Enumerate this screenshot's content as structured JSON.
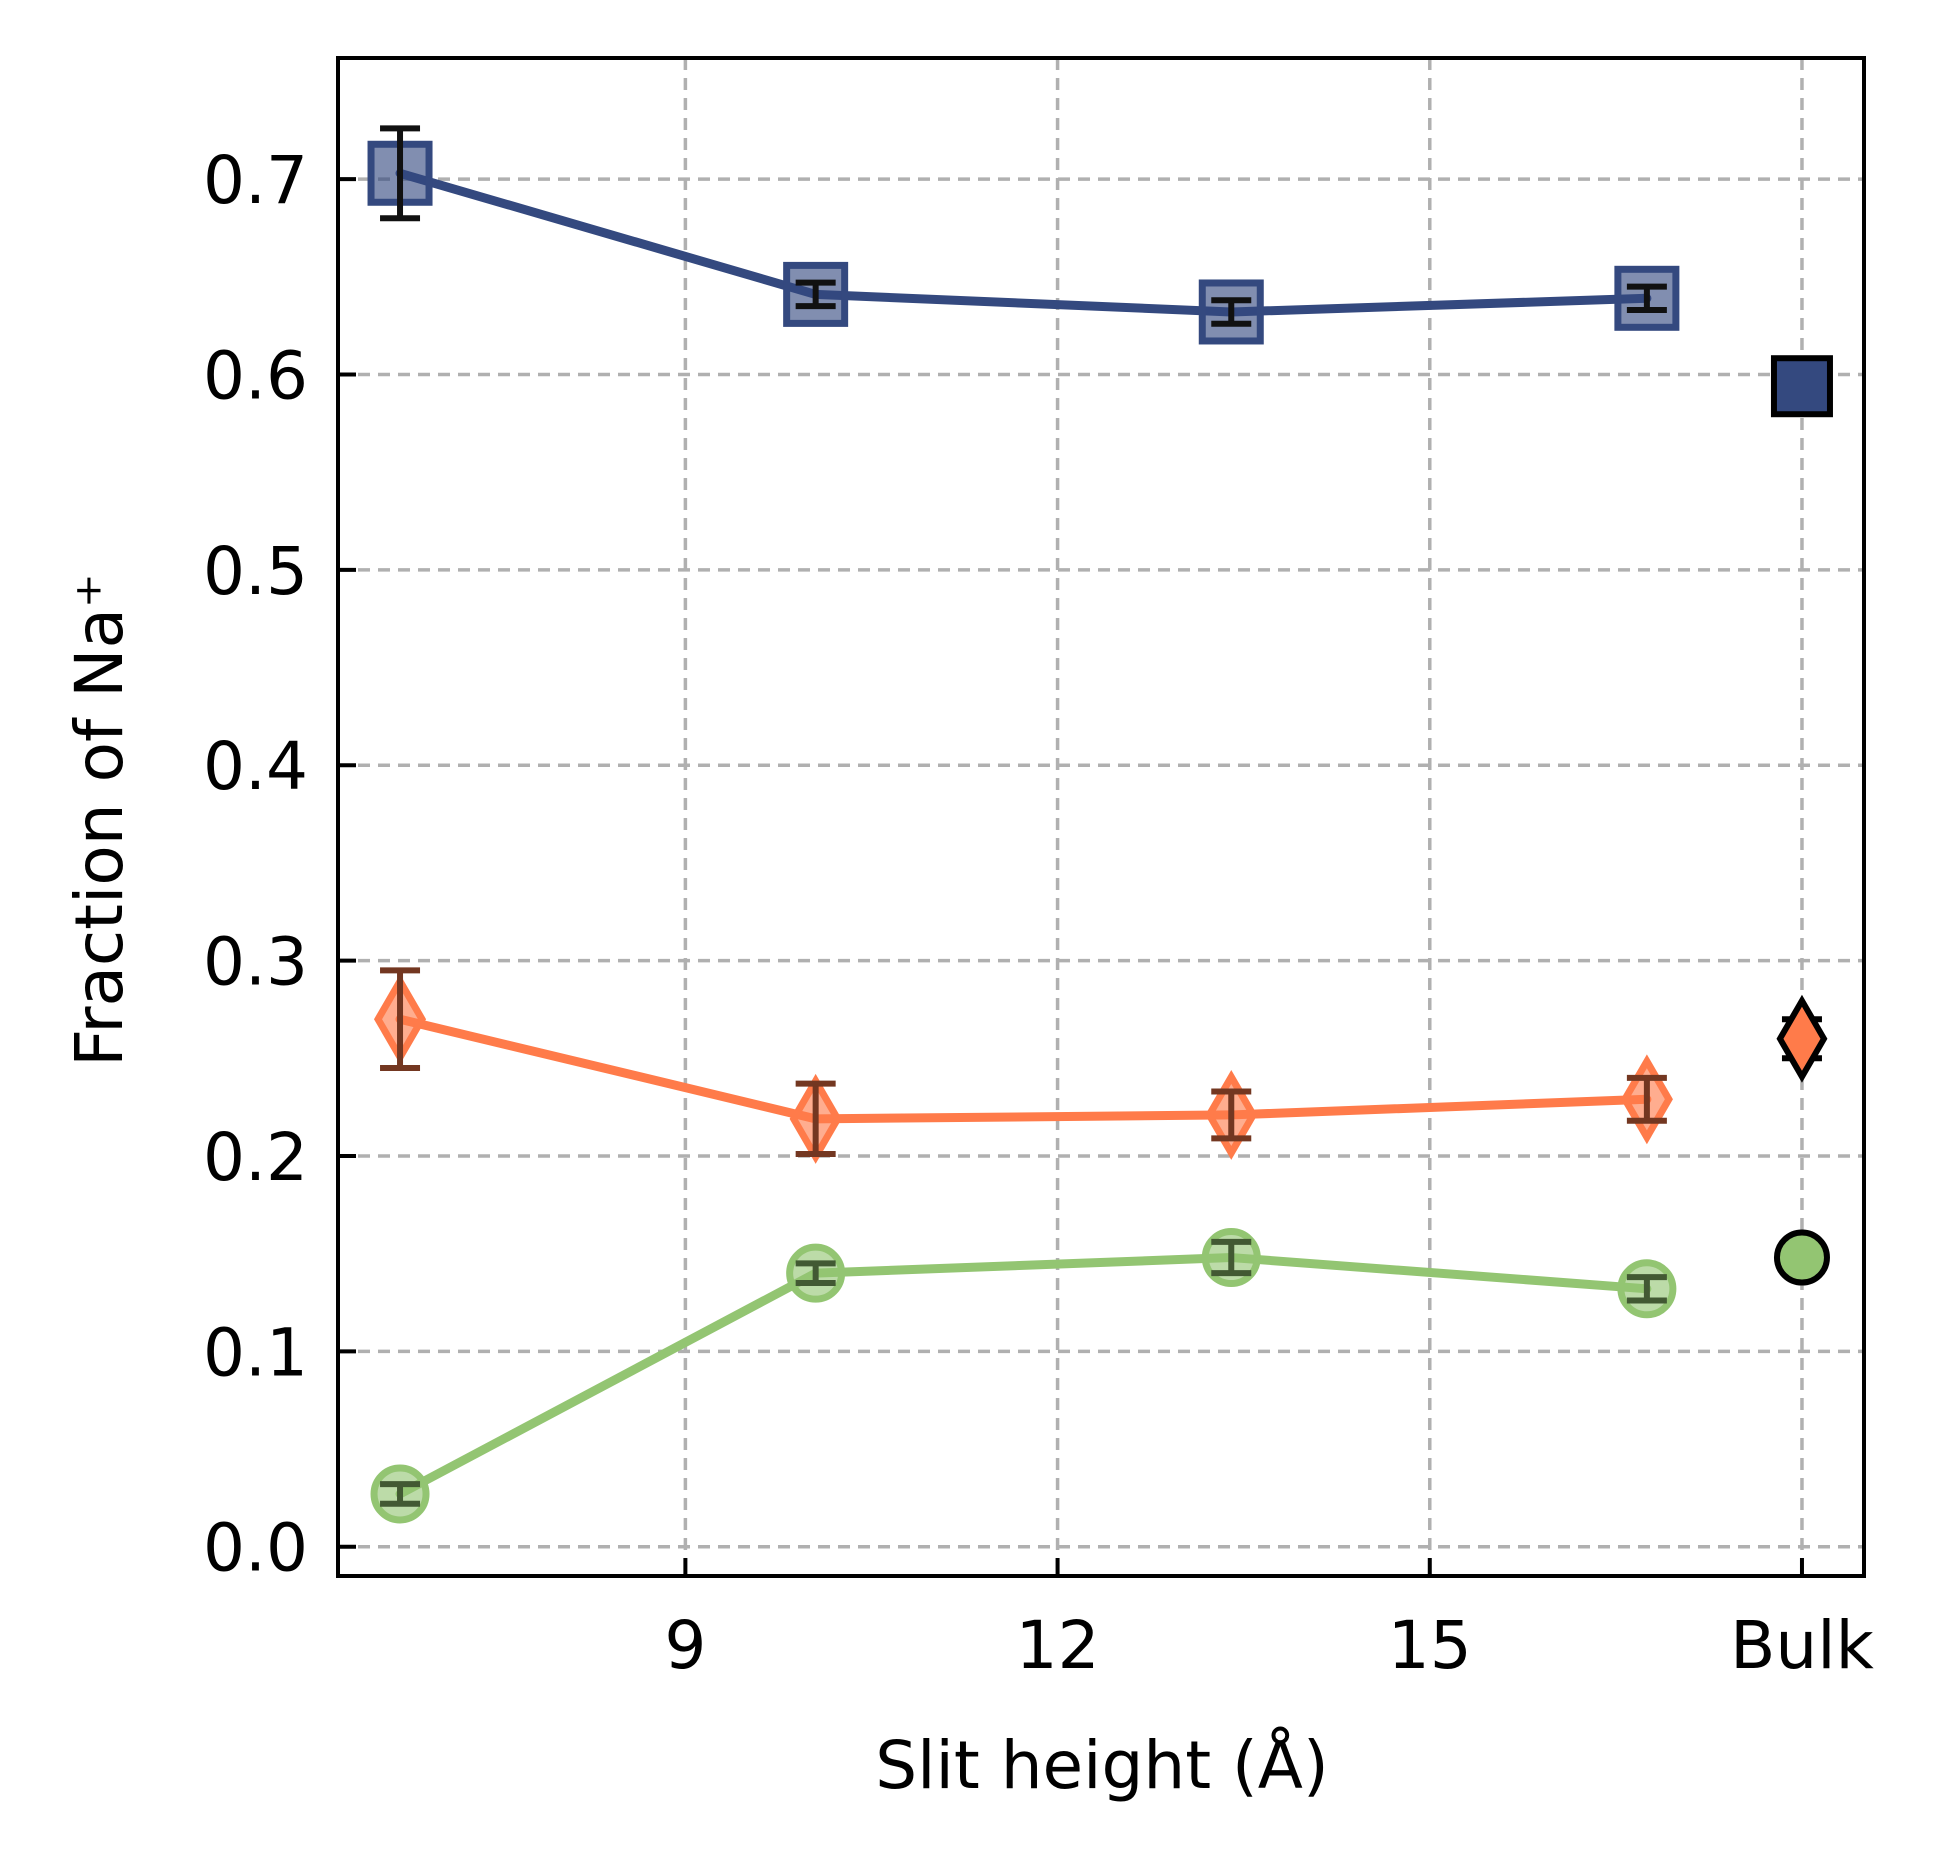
{
  "chart_data": {
    "type": "line",
    "xlabel": "Slit height (Å)",
    "ylabel": "Fraction of Na⁺",
    "xlim": [
      6.2,
      18.5
    ],
    "ylim": [
      -0.015,
      0.762
    ],
    "grid": true,
    "x_ticks": [
      {
        "value": 9,
        "label": "9"
      },
      {
        "value": 12,
        "label": "12"
      },
      {
        "value": 15,
        "label": "15"
      },
      {
        "value": 18,
        "label": "Bulk"
      }
    ],
    "y_ticks": [
      {
        "value": 0.0,
        "label": "0.0"
      },
      {
        "value": 0.1,
        "label": "0.1"
      },
      {
        "value": 0.2,
        "label": "0.2"
      },
      {
        "value": 0.3,
        "label": "0.3"
      },
      {
        "value": 0.4,
        "label": "0.4"
      },
      {
        "value": 0.5,
        "label": "0.5"
      },
      {
        "value": 0.6,
        "label": "0.6"
      },
      {
        "value": 0.7,
        "label": "0.7"
      }
    ],
    "series": [
      {
        "marker": "square",
        "color": "#34497f",
        "x": [
          6.7,
          10.05,
          13.4,
          16.75
        ],
        "y": [
          0.703,
          0.641,
          0.632,
          0.639
        ],
        "err": [
          0.023,
          0.006,
          0.006,
          0.006
        ],
        "bulk": {
          "x": 18,
          "y": 0.594,
          "err": 0.0
        }
      },
      {
        "marker": "diamond",
        "color": "#ff7b4a",
        "x": [
          6.7,
          10.05,
          13.4,
          16.75
        ],
        "y": [
          0.27,
          0.219,
          0.221,
          0.229
        ],
        "err": [
          0.025,
          0.018,
          0.012,
          0.011
        ],
        "bulk": {
          "x": 18,
          "y": 0.26,
          "err": 0.01
        }
      },
      {
        "marker": "circle",
        "color": "#93c572",
        "x": [
          6.7,
          10.05,
          13.4,
          16.75
        ],
        "y": [
          0.027,
          0.14,
          0.148,
          0.132
        ],
        "err": [
          0.005,
          0.005,
          0.008,
          0.006
        ],
        "bulk": {
          "x": 18,
          "y": 0.148,
          "err": 0.0
        }
      }
    ]
  }
}
